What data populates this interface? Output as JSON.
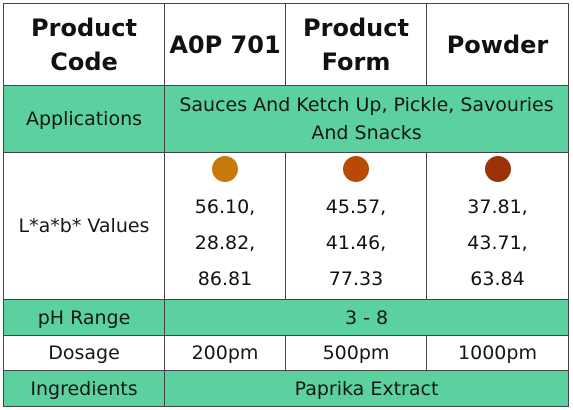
{
  "header": {
    "product_code_label": "Product Code",
    "product_code_value": "A0P 701",
    "product_form_label": "Product Form",
    "product_form_value": "Powder"
  },
  "applications": {
    "label": "Applications",
    "value": "Sauces And Ketch Up, Pickle, Savouries And Snacks"
  },
  "lab": {
    "label": "L*a*b* Values",
    "items": [
      {
        "color": "#c8790a",
        "lines": [
          "56.10,",
          "28.82,",
          "86.81"
        ]
      },
      {
        "color": "#b84a05",
        "lines": [
          "45.57,",
          "41.46,",
          "77.33"
        ]
      },
      {
        "color": "#9a3205",
        "lines": [
          "37.81,",
          "43.71,",
          "63.84"
        ]
      }
    ]
  },
  "ph": {
    "label": "pH Range",
    "value": "3 - 8"
  },
  "dosage": {
    "label": "Dosage",
    "values": [
      "200pm",
      "500pm",
      "1000pm"
    ]
  },
  "ingredients": {
    "label": "Ingredients",
    "value": "Paprika Extract"
  },
  "colors": {
    "row_green": "#5bd1a0"
  }
}
